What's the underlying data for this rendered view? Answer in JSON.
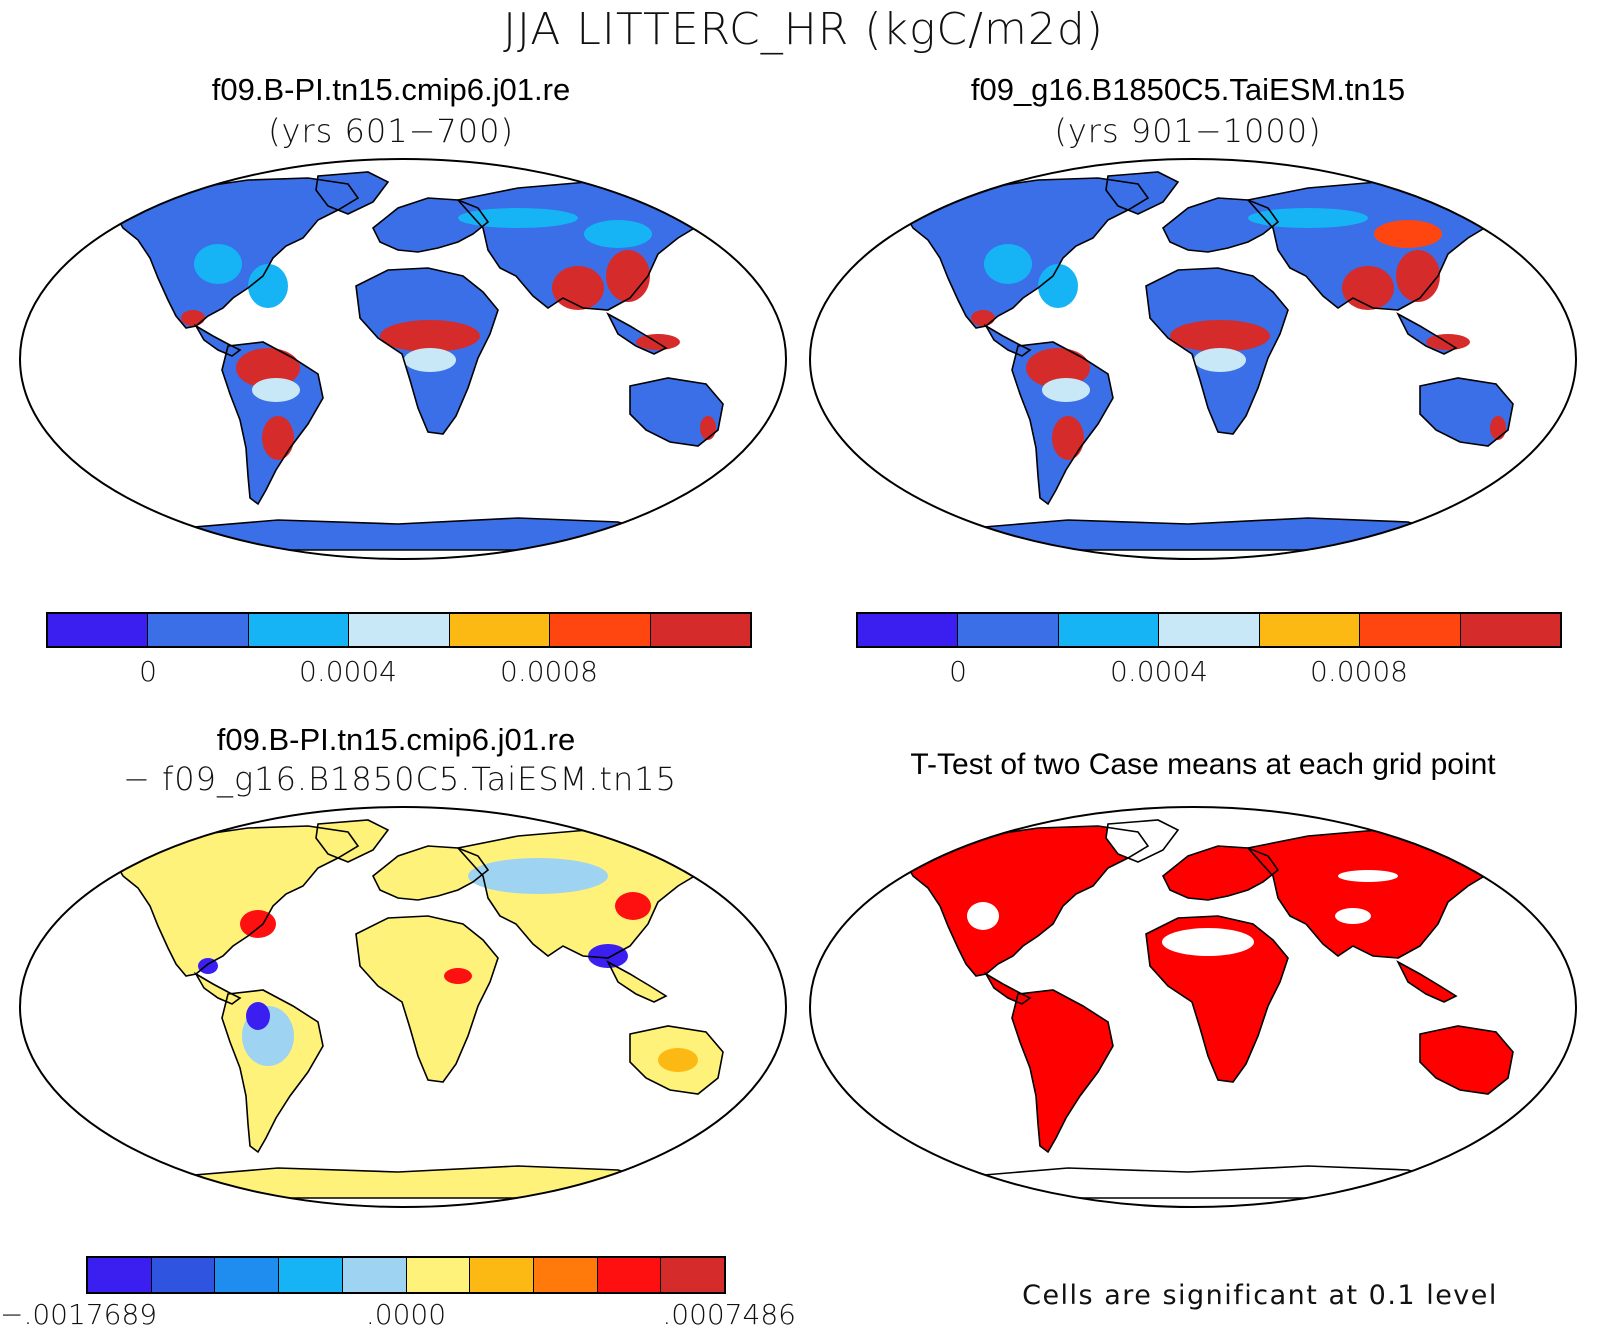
{
  "figure": {
    "title": "JJA LITTERC_HR (kgC/m2d)"
  },
  "panels": {
    "case1": {
      "title": "f09.B-PI.tn15.cmip6.j01.re",
      "subtitle": "(yrs 601−700)"
    },
    "case2": {
      "title": "f09_g16.B1850C5.TaiESM.tn15",
      "subtitle": "(yrs 901−1000)"
    },
    "diff": {
      "title": "f09.B-PI.tn15.cmip6.j01.re",
      "subtitle": "− f09_g16.B1850C5.TaiESM.tn15"
    },
    "ttest": {
      "title": "T-Test of two Case means at each grid point",
      "note": "Cells are significant at 0.1 level"
    }
  },
  "colorbars": {
    "abs": {
      "colors": [
        "#3b1ff0",
        "#3a6fe8",
        "#16b4f4",
        "#c9e8f7",
        "#fdb913",
        "#ff4510",
        "#d62b2b"
      ],
      "tick_labels": [
        "0",
        "0.0004",
        "0.0008"
      ]
    },
    "diff": {
      "colors": [
        "#3b1ff0",
        "#2f55e0",
        "#1f8cf0",
        "#16b4f4",
        "#9fd3f2",
        "#fff27a",
        "#fdb913",
        "#ff7a0a",
        "#ff1010",
        "#d62b2b"
      ],
      "tick_labels": [
        ".0017689",
        ".0000",
        ".0007486"
      ],
      "first_label_prefix": "−"
    }
  },
  "map_colors": {
    "ocean": "#ffffff",
    "coast": "#000000",
    "abs_land": "#3a6fe8",
    "abs_mid": "#16b4f4",
    "abs_light": "#c9e8f7",
    "abs_hot": "#d62b2b",
    "abs_orange": "#ff4510",
    "diff_land": "#fff27a",
    "diff_light_blue": "#9fd3f2",
    "diff_blue": "#3b1ff0",
    "diff_red": "#ff1010",
    "sig_red": "#ff0000"
  }
}
